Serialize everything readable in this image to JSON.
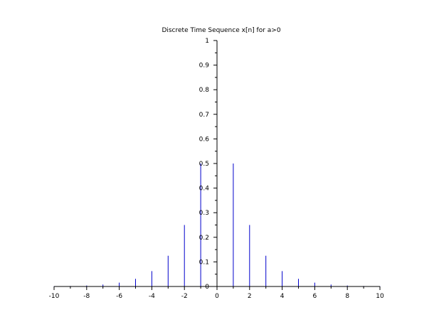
{
  "chart_data": {
    "type": "stem",
    "title": "Discrete Time Sequence x[n] for a>0",
    "xlabel": "",
    "ylabel": "",
    "xlim": [
      -10,
      10
    ],
    "ylim": [
      0,
      1
    ],
    "x_ticks": [
      "-10",
      "-8",
      "-6",
      "-4",
      "-2",
      "0",
      "2",
      "4",
      "6",
      "8",
      "10"
    ],
    "y_ticks": [
      "0",
      "0.1",
      "0.2",
      "0.3",
      "0.4",
      "0.5",
      "0.6",
      "0.7",
      "0.8",
      "0.9",
      "1"
    ],
    "stem_color": "#0000cc",
    "grid": false,
    "series": [
      {
        "x": [
          -10,
          -9,
          -8,
          -7,
          -6,
          -5,
          -4,
          -3,
          -2,
          -1,
          0,
          1,
          2,
          3,
          4,
          5,
          6,
          7,
          8,
          9,
          10
        ],
        "values": [
          0.0009765625,
          0.001953125,
          0.00390625,
          0.0078125,
          0.015625,
          0.03125,
          0.0625,
          0.125,
          0.25,
          0.5,
          1,
          0.5,
          0.25,
          0.125,
          0.0625,
          0.03125,
          0.015625,
          0.0078125,
          0.00390625,
          0.001953125,
          0.0009765625
        ]
      }
    ]
  }
}
